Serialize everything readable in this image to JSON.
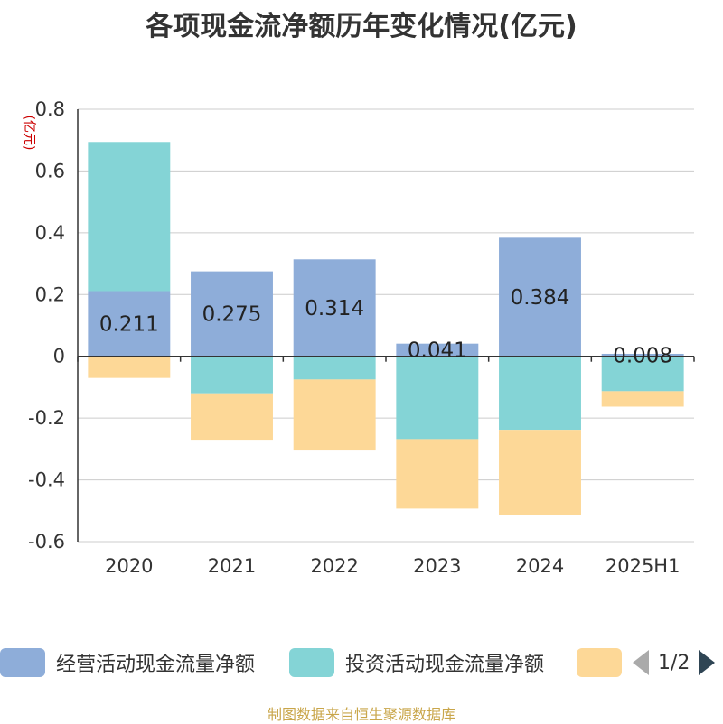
{
  "title": "各项现金流净额历年变化情况(亿元)",
  "source": "制图数据来自恒生聚源数据库",
  "colors": {
    "operating": "#8eadd9",
    "investing": "#84d4d6",
    "financing": "#fdd897",
    "axis": "#333333",
    "grid": "#cccccc",
    "unit": "#cc0000"
  },
  "legend": {
    "items": [
      {
        "label": "经营活动现金流量净额",
        "color": "#8eadd9"
      },
      {
        "label": "投资活动现金流量净额",
        "color": "#84d4d6"
      },
      {
        "label": "",
        "color": "#fdd897"
      }
    ],
    "page": "1/2",
    "prev_icon": "triangle-left-icon",
    "next_icon": "triangle-right-icon"
  },
  "chart_data": {
    "type": "bar",
    "stacked": true,
    "title": "各项现金流净额历年变化情况(亿元)",
    "ylabel": "(亿元)",
    "xlabel": "",
    "ylim": [
      -0.6,
      0.8
    ],
    "yticks": [
      -0.6,
      -0.4,
      -0.2,
      0,
      0.2,
      0.4,
      0.6,
      0.8
    ],
    "ytick_labels": [
      "-0.6",
      "-0.4",
      "-0.2",
      "0",
      "0.2",
      "0.4",
      "0.6",
      "0.8"
    ],
    "grid": true,
    "legend_position": "bottom",
    "categories": [
      "2020",
      "2021",
      "2022",
      "2023",
      "2024",
      "2025H1"
    ],
    "series": [
      {
        "name": "经营活动现金流量净额",
        "values": [
          0.211,
          0.275,
          0.314,
          0.041,
          0.384,
          0.008
        ],
        "labels": [
          "0.211",
          "0.275",
          "0.314",
          "0.041",
          "0.384",
          "0.008"
        ]
      },
      {
        "name": "投资活动现金流量净额",
        "values": [
          0.483,
          -0.12,
          -0.075,
          -0.268,
          -0.238,
          -0.113
        ]
      },
      {
        "name": "",
        "values": [
          -0.07,
          -0.15,
          -0.23,
          -0.225,
          -0.277,
          -0.05
        ]
      }
    ]
  }
}
